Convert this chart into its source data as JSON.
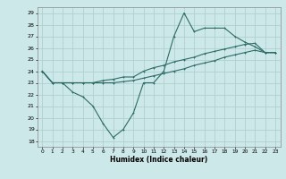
{
  "xlabel": "Humidex (Indice chaleur)",
  "ylabel": "",
  "bg_color": "#cce8e8",
  "grid_color": "#b0d0d0",
  "line_color": "#2e6b65",
  "xlim": [
    -0.5,
    23.5
  ],
  "ylim": [
    17.5,
    29.5
  ],
  "xticks": [
    0,
    1,
    2,
    3,
    4,
    5,
    6,
    7,
    8,
    9,
    10,
    11,
    12,
    13,
    14,
    15,
    16,
    17,
    18,
    19,
    20,
    21,
    22,
    23
  ],
  "yticks": [
    18,
    19,
    20,
    21,
    22,
    23,
    24,
    25,
    26,
    27,
    28,
    29
  ],
  "line1_x": [
    0,
    1,
    2,
    3,
    4,
    5,
    6,
    7,
    8,
    9,
    10,
    11,
    12,
    13,
    14,
    15,
    16,
    17,
    18,
    19,
    20,
    21,
    22,
    23
  ],
  "line1_y": [
    24,
    23,
    23,
    22.2,
    21.8,
    21,
    19.5,
    18.3,
    19,
    20.4,
    23,
    23,
    24,
    27,
    29,
    27.4,
    27.7,
    27.7,
    27.7,
    27.0,
    26.5,
    26.1,
    25.6,
    25.6
  ],
  "line2_x": [
    0,
    1,
    2,
    3,
    4,
    5,
    6,
    7,
    8,
    9,
    10,
    11,
    12,
    13,
    14,
    15,
    16,
    17,
    18,
    19,
    20,
    21,
    22,
    23
  ],
  "line2_y": [
    24,
    23,
    23,
    23,
    23,
    23,
    23.2,
    23.3,
    23.5,
    23.5,
    24,
    24.3,
    24.5,
    24.8,
    25,
    25.2,
    25.5,
    25.7,
    25.9,
    26.1,
    26.3,
    26.4,
    25.6,
    25.6
  ],
  "line3_x": [
    0,
    1,
    2,
    3,
    4,
    5,
    6,
    7,
    8,
    9,
    10,
    11,
    12,
    13,
    14,
    15,
    16,
    17,
    18,
    19,
    20,
    21,
    22,
    23
  ],
  "line3_y": [
    24,
    23,
    23,
    23,
    23,
    23,
    23,
    23,
    23.1,
    23.2,
    23.4,
    23.6,
    23.8,
    24.0,
    24.2,
    24.5,
    24.7,
    24.9,
    25.2,
    25.4,
    25.6,
    25.8,
    25.6,
    25.6
  ]
}
